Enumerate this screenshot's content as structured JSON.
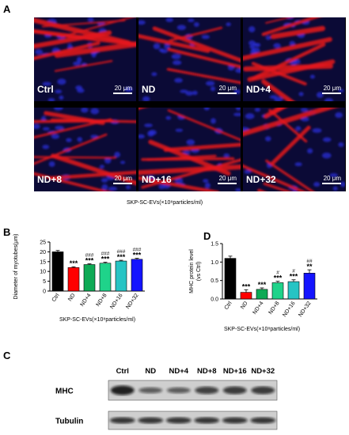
{
  "panel_a": {
    "letter": "A",
    "tiles": [
      {
        "label": "Ctrl",
        "scale": "20 μm"
      },
      {
        "label": "ND",
        "scale": "20 μm"
      },
      {
        "label": "ND+4",
        "scale": "20 μm"
      },
      {
        "label": "ND+8",
        "scale": "20 μm"
      },
      {
        "label": "ND+16",
        "scale": "20 μm"
      },
      {
        "label": "ND+32",
        "scale": "20 μm"
      }
    ],
    "caption": "SKP-SC-EVs(×10⁸particles/ml)",
    "colors": {
      "myotube": "#e8161b",
      "nuclei": "#2a2fd6",
      "background": "#0b0a36"
    }
  },
  "panel_b": {
    "letter": "B"
  },
  "panel_c": {
    "letter": "C",
    "lanes": [
      "Ctrl",
      "ND",
      "ND+4",
      "ND+8",
      "ND+16",
      "ND+32"
    ],
    "rows": [
      "MHC",
      "Tubulin"
    ],
    "mhc_intensity": [
      1.0,
      0.45,
      0.45,
      0.7,
      0.75,
      0.75
    ],
    "tubulin_intensity": [
      0.8,
      0.8,
      0.8,
      0.8,
      0.8,
      0.8
    ]
  },
  "panel_d": {
    "letter": "D"
  },
  "chart_data": [
    {
      "type": "bar",
      "title": "",
      "ylabel": "Diameter of myotubes(μm)",
      "xlabel": "SKP-SC-EVs(×10⁸particles/ml)",
      "categories": [
        "Ctrl",
        "ND",
        "ND+4",
        "ND+8",
        "ND+16",
        "ND+32"
      ],
      "values": [
        20.0,
        12.0,
        13.5,
        14.2,
        15.3,
        16.2
      ],
      "errors": [
        0.7,
        0.4,
        0.4,
        0.5,
        0.4,
        0.5
      ],
      "colors": [
        "#000000",
        "#ff0000",
        "#0eaa55",
        "#1fd38a",
        "#27c4c4",
        "#1414ff"
      ],
      "annotations_top": [
        "",
        "",
        "###",
        "###",
        "###",
        "###"
      ],
      "annotations_bottom": [
        "",
        "***",
        "***",
        "***",
        "***",
        "***"
      ],
      "ylim": [
        0,
        25
      ],
      "yticks": [
        0,
        5,
        10,
        15,
        20,
        25
      ],
      "grid": false
    },
    {
      "type": "bar",
      "title": "",
      "ylabel": "MHC protein level (vs Ctrl)",
      "xlabel": "SKP-SC-EVs(×10⁸particles/ml)",
      "categories": [
        "Ctrl",
        "ND",
        "ND+4",
        "ND+8",
        "ND+16",
        "ND+32"
      ],
      "values": [
        1.1,
        0.18,
        0.26,
        0.44,
        0.47,
        0.7
      ],
      "errors": [
        0.06,
        0.07,
        0.04,
        0.04,
        0.05,
        0.09
      ],
      "colors": [
        "#000000",
        "#ff0000",
        "#0eaa55",
        "#1fd38a",
        "#27c4c4",
        "#1414ff"
      ],
      "annotations_top": [
        "",
        "",
        "",
        "#",
        "#",
        "##"
      ],
      "annotations_bottom": [
        "",
        "***",
        "***",
        "***",
        "***",
        "**"
      ],
      "ylim": [
        0,
        1.5
      ],
      "yticks": [
        0.0,
        0.5,
        1.0,
        1.5
      ],
      "grid": false
    }
  ]
}
